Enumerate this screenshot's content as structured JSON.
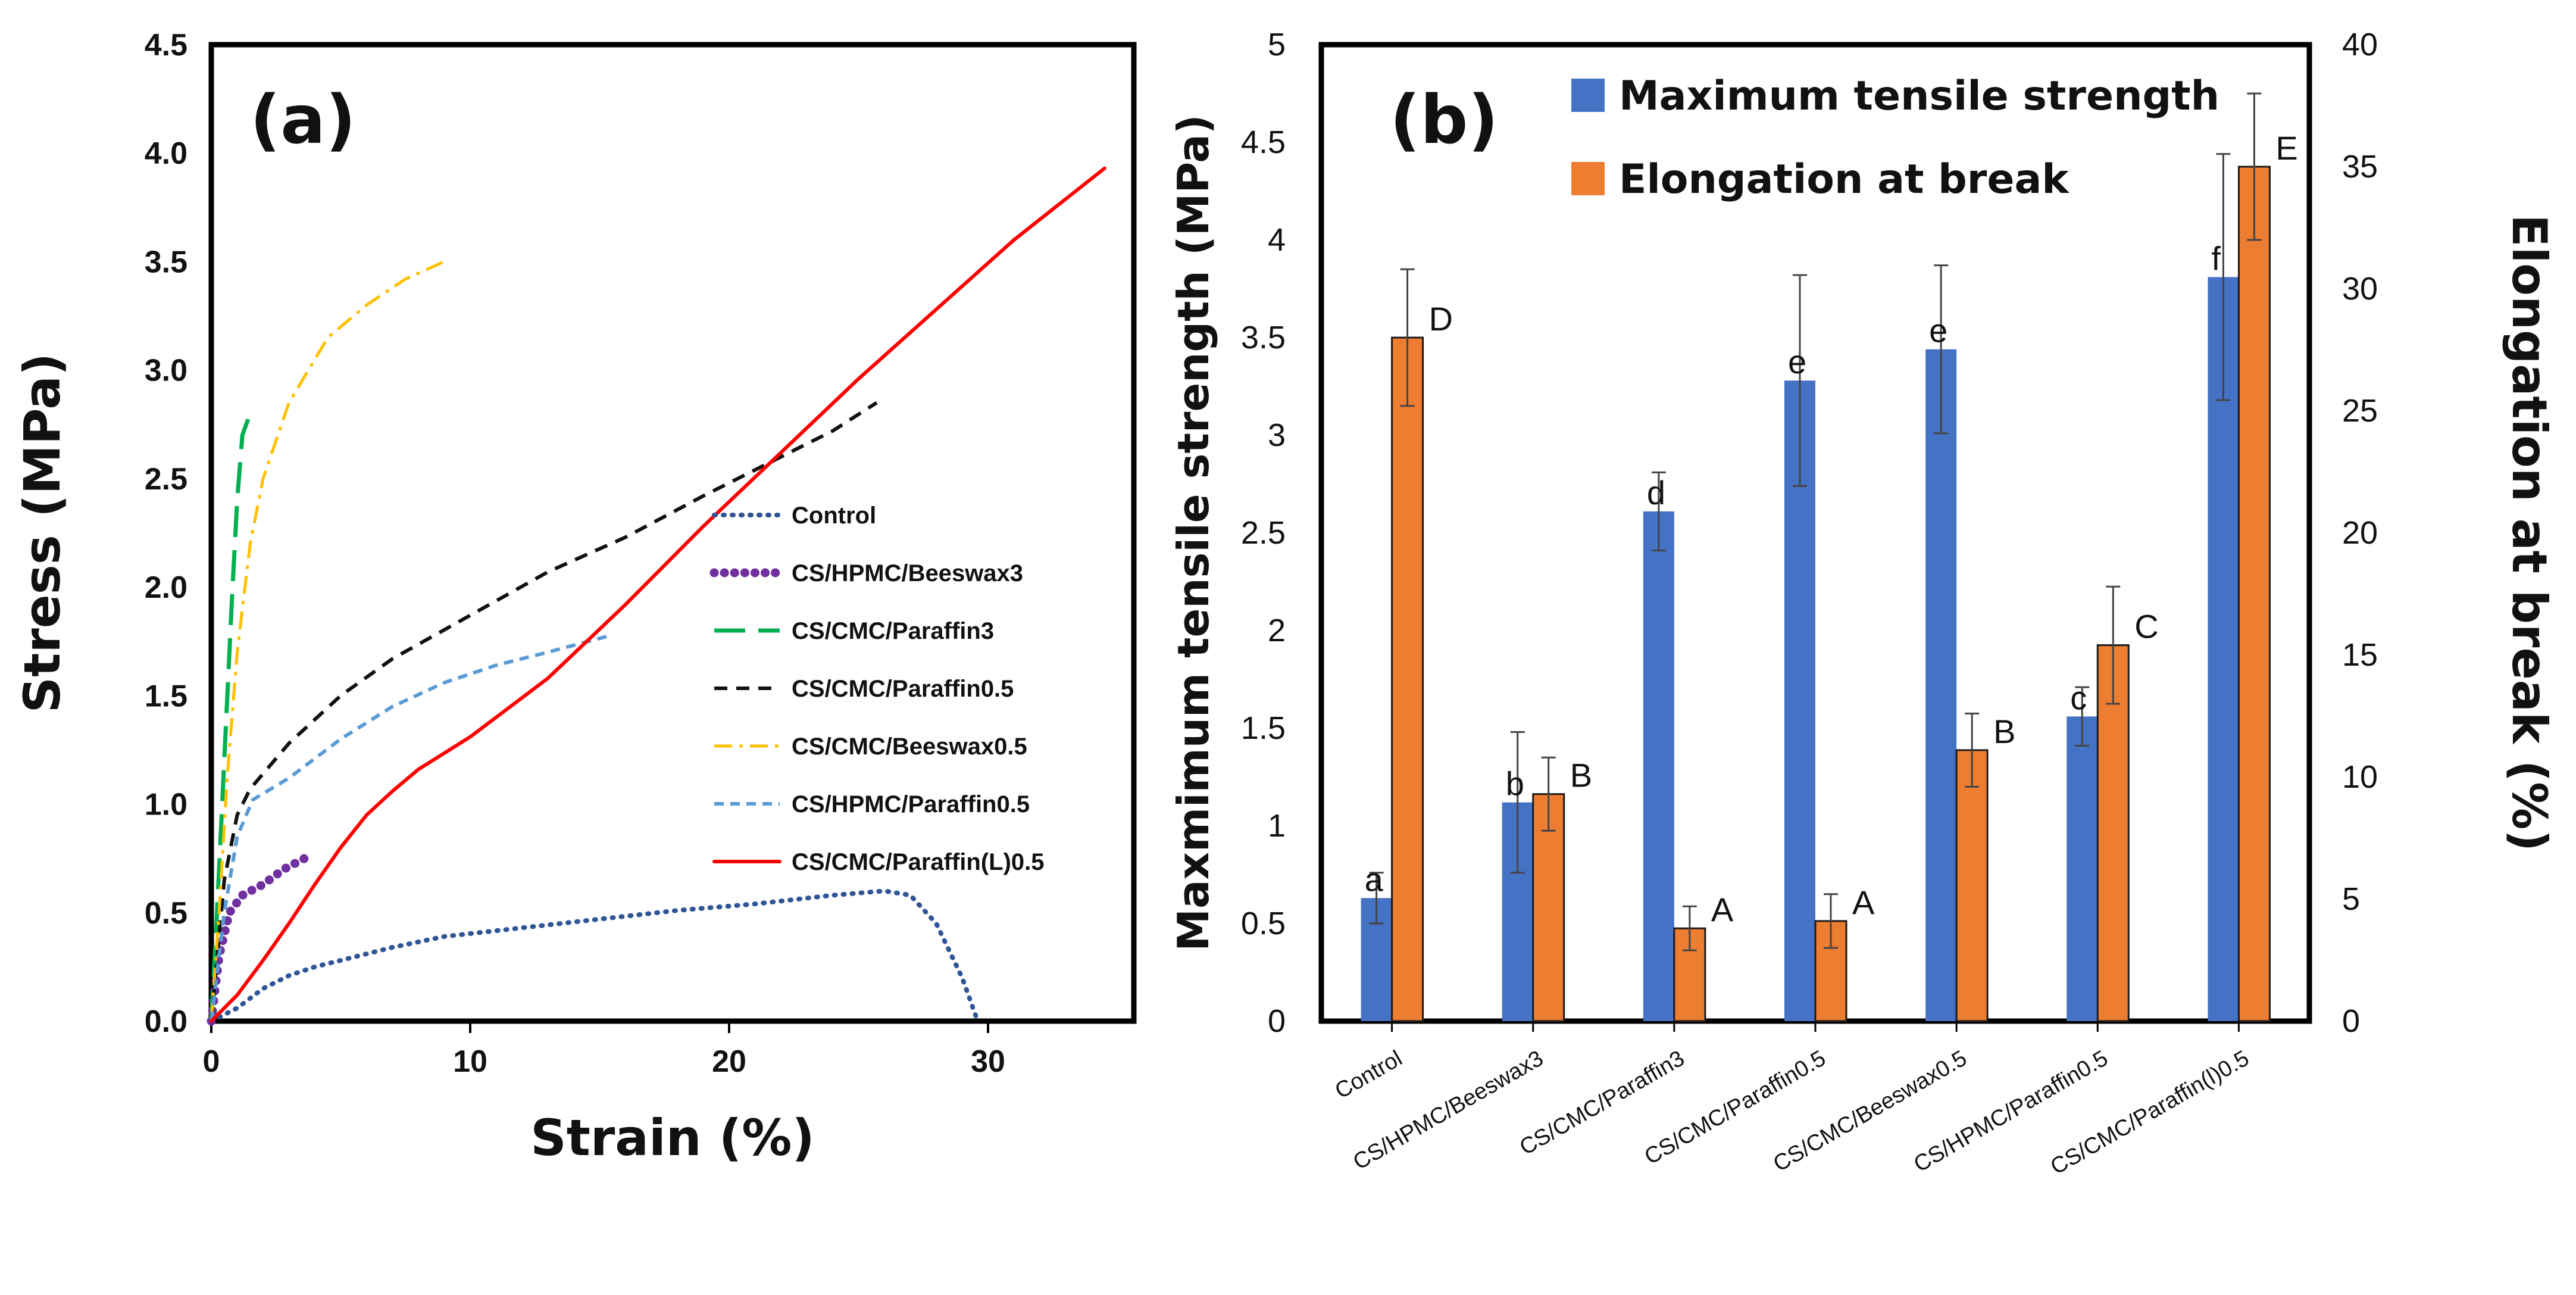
{
  "panel_a": {
    "label": "(a)",
    "chart_data": {
      "type": "line",
      "xlabel": "Strain (%)",
      "ylabel": "Stress (MPa)",
      "xlim": [
        0,
        35
      ],
      "ylim": [
        0,
        4.5
      ],
      "xticks": [
        0,
        10,
        20,
        30
      ],
      "yticks": [
        "0.0",
        "0.5",
        "1.0",
        "1.5",
        "2.0",
        "2.5",
        "3.0",
        "3.5",
        "4.0",
        "4.5"
      ],
      "series": [
        {
          "name": "Control",
          "color": "#2f5597",
          "dash": "dot",
          "points": [
            [
              0,
              0
            ],
            [
              1,
              0.06
            ],
            [
              2,
              0.15
            ],
            [
              3,
              0.21
            ],
            [
              4,
              0.25
            ],
            [
              5,
              0.28
            ],
            [
              7,
              0.34
            ],
            [
              9,
              0.39
            ],
            [
              12,
              0.43
            ],
            [
              15,
              0.47
            ],
            [
              18,
              0.51
            ],
            [
              21,
              0.54
            ],
            [
              24,
              0.58
            ],
            [
              26,
              0.6
            ],
            [
              27,
              0.58
            ],
            [
              28,
              0.45
            ],
            [
              29,
              0.2
            ],
            [
              29.6,
              0
            ]
          ]
        },
        {
          "name": "CS/HPMC/Beeswax3",
          "color": "#7030a0",
          "dash": "bigdot",
          "points": [
            [
              0,
              0
            ],
            [
              0.3,
              0.3
            ],
            [
              0.7,
              0.5
            ],
            [
              1.2,
              0.58
            ],
            [
              2,
              0.63
            ],
            [
              2.8,
              0.7
            ],
            [
              3.6,
              0.75
            ]
          ]
        },
        {
          "name": "CS/CMC/Paraffin3",
          "color": "#00b050",
          "dash": "longdash",
          "points": [
            [
              0,
              0
            ],
            [
              0.2,
              0.45
            ],
            [
              0.4,
              0.95
            ],
            [
              0.6,
              1.45
            ],
            [
              0.8,
              1.95
            ],
            [
              1.0,
              2.4
            ],
            [
              1.2,
              2.7
            ],
            [
              1.5,
              2.8
            ]
          ]
        },
        {
          "name": "CS/CMC/Paraffin0.5",
          "color": "#111111",
          "dash": "dash",
          "points": [
            [
              0,
              0
            ],
            [
              0.5,
              0.65
            ],
            [
              1,
              0.95
            ],
            [
              1.5,
              1.07
            ],
            [
              3,
              1.28
            ],
            [
              5,
              1.5
            ],
            [
              7,
              1.67
            ],
            [
              10,
              1.87
            ],
            [
              13,
              2.07
            ],
            [
              16,
              2.23
            ],
            [
              19,
              2.42
            ],
            [
              22,
              2.6
            ],
            [
              24,
              2.72
            ],
            [
              25.7,
              2.85
            ]
          ]
        },
        {
          "name": "CS/CMC/Beeswax0.5",
          "color": "#ffc000",
          "dash": "dashdot",
          "points": [
            [
              0,
              0
            ],
            [
              0.3,
              0.5
            ],
            [
              0.6,
              1.1
            ],
            [
              1,
              1.7
            ],
            [
              1.5,
              2.2
            ],
            [
              2,
              2.5
            ],
            [
              3,
              2.85
            ],
            [
              4.5,
              3.15
            ],
            [
              6,
              3.3
            ],
            [
              7.5,
              3.42
            ],
            [
              9,
              3.5
            ]
          ]
        },
        {
          "name": "CS/HPMC/Paraffin0.5",
          "color": "#5b9bd5",
          "dash": "shortdash",
          "points": [
            [
              0,
              0
            ],
            [
              0.5,
              0.5
            ],
            [
              1,
              0.85
            ],
            [
              1.6,
              1.02
            ],
            [
              3,
              1.12
            ],
            [
              5,
              1.3
            ],
            [
              7,
              1.45
            ],
            [
              9,
              1.56
            ],
            [
              11,
              1.64
            ],
            [
              13,
              1.7
            ],
            [
              15.5,
              1.78
            ]
          ]
        },
        {
          "name": "CS/CMC/Paraffin(L)0.5",
          "color": "#ff0000",
          "dash": "solid",
          "points": [
            [
              0,
              0
            ],
            [
              1,
              0.12
            ],
            [
              2,
              0.28
            ],
            [
              3,
              0.45
            ],
            [
              4,
              0.63
            ],
            [
              5,
              0.8
            ],
            [
              6,
              0.95
            ],
            [
              7,
              1.06
            ],
            [
              8,
              1.16
            ],
            [
              10,
              1.31
            ],
            [
              13,
              1.58
            ],
            [
              16,
              1.92
            ],
            [
              19,
              2.28
            ],
            [
              22,
              2.62
            ],
            [
              25,
              2.96
            ],
            [
              28,
              3.28
            ],
            [
              31,
              3.6
            ],
            [
              34.5,
              3.93
            ]
          ]
        }
      ]
    }
  },
  "panel_b": {
    "label": "(b)",
    "chart_data": {
      "type": "bar",
      "ylabel_left": "Maxmimum tensile strength (MPa)",
      "ylabel_right": "Elongation at break (%)",
      "ylim_left": [
        0,
        5
      ],
      "ylim_right": [
        0,
        40
      ],
      "yticks_left": [
        "0",
        "0.5",
        "1",
        "1.5",
        "2",
        "2.5",
        "3",
        "3.5",
        "4",
        "4.5",
        "5"
      ],
      "yticks_right": [
        "0",
        "5",
        "10",
        "15",
        "20",
        "25",
        "30",
        "35",
        "40"
      ],
      "categories": [
        "Control",
        "CS/HPMC/Beeswax3",
        "CS/CMC/Paraffin3",
        "CS/CMC/Paraffin0.5",
        "CS/CMC/Beeswax0.5",
        "CS/HPMC/Paraffin0.5",
        "CS/CMC/Paraffin(l)0.5"
      ],
      "series": [
        {
          "name": "Maximum tensile strength",
          "axis": "left",
          "color": "#4472c4",
          "values": [
            0.63,
            1.12,
            2.61,
            3.28,
            3.44,
            1.56,
            3.81
          ],
          "errors": [
            0.13,
            0.36,
            0.2,
            0.54,
            0.43,
            0.15,
            0.63
          ],
          "letters": [
            "a",
            "b",
            "d",
            "e",
            "e",
            "c",
            "f"
          ]
        },
        {
          "name": "Elongation at break",
          "axis": "right",
          "color": "#ed7d31",
          "values": [
            28.0,
            9.3,
            3.8,
            4.1,
            11.1,
            15.4,
            35.0
          ],
          "errors": [
            2.8,
            1.5,
            0.9,
            1.1,
            1.5,
            2.4,
            3.0
          ],
          "letters": [
            "D",
            "B",
            "A",
            "A",
            "B",
            "C",
            "E"
          ]
        }
      ]
    }
  }
}
